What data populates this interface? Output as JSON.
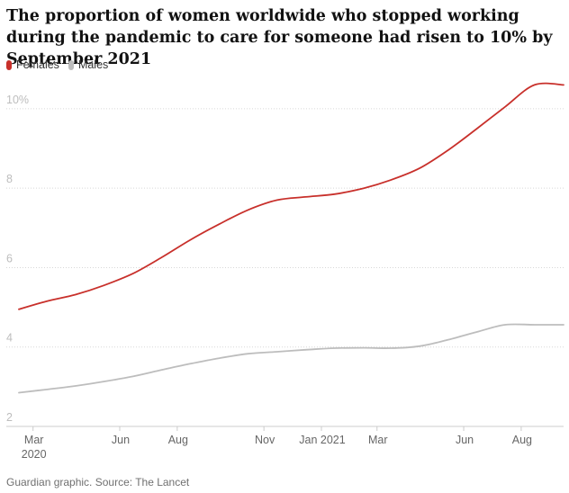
{
  "title": "The proportion of women worldwide who stopped working during the pandemic to care for someone had risen to 10% by September 2021",
  "source": "Guardian graphic. Source: The Lancet",
  "colors": {
    "females": "#c8302b",
    "males": "#bdbdbd",
    "grid": "#d7d7d7"
  },
  "chart_data": {
    "type": "line",
    "title": "The proportion of women worldwide who stopped working during the pandemic to care for someone had risen to 10% by September 2021",
    "xlabel": "",
    "ylabel": "",
    "xlim": [
      "2020-02-15",
      "2021-09-15"
    ],
    "ylim": [
      2,
      10.7
    ],
    "grid": true,
    "legend_position": "top-left",
    "y_ticks": [
      {
        "value": 10,
        "label": "10%"
      },
      {
        "value": 8,
        "label": "8"
      },
      {
        "value": 6,
        "label": "6"
      },
      {
        "value": 4,
        "label": "4"
      },
      {
        "value": 2,
        "label": "2"
      }
    ],
    "x_ticks": [
      {
        "date": "2020-03-01",
        "label": "Mar",
        "sublabel": "2020"
      },
      {
        "date": "2020-06-01",
        "label": "Jun",
        "sublabel": ""
      },
      {
        "date": "2020-08-01",
        "label": "Aug",
        "sublabel": ""
      },
      {
        "date": "2020-11-01",
        "label": "Nov",
        "sublabel": ""
      },
      {
        "date": "2021-01-01",
        "label": "Jan 2021",
        "sublabel": ""
      },
      {
        "date": "2021-03-01",
        "label": "Mar",
        "sublabel": ""
      },
      {
        "date": "2021-06-01",
        "label": "Jun",
        "sublabel": ""
      },
      {
        "date": "2021-08-01",
        "label": "Aug",
        "sublabel": ""
      }
    ],
    "x": [
      "2020-02-15",
      "2020-03-15",
      "2020-04-15",
      "2020-05-15",
      "2020-06-15",
      "2020-07-15",
      "2020-08-15",
      "2020-09-15",
      "2020-10-15",
      "2020-11-15",
      "2020-12-15",
      "2021-01-15",
      "2021-02-15",
      "2021-03-15",
      "2021-04-15",
      "2021-05-15",
      "2021-06-15",
      "2021-07-15",
      "2021-08-15",
      "2021-09-15"
    ],
    "series": [
      {
        "name": "Females",
        "color": "#c8302b",
        "values": [
          4.95,
          5.15,
          5.32,
          5.55,
          5.85,
          6.25,
          6.7,
          7.1,
          7.45,
          7.7,
          7.78,
          7.85,
          8.0,
          8.2,
          8.5,
          8.95,
          9.5,
          10.05,
          10.6,
          10.6
        ]
      },
      {
        "name": "Males",
        "color": "#bdbdbd",
        "values": [
          2.85,
          2.93,
          3.02,
          3.13,
          3.26,
          3.42,
          3.58,
          3.72,
          3.83,
          3.88,
          3.93,
          3.97,
          3.98,
          3.97,
          4.02,
          4.18,
          4.38,
          4.56,
          4.56,
          4.56
        ]
      }
    ]
  }
}
